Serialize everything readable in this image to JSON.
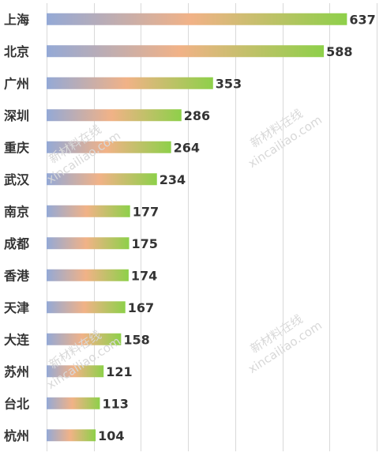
{
  "chart_data": {
    "type": "bar",
    "orientation": "horizontal",
    "categories": [
      "上海",
      "北京",
      "广州",
      "深圳",
      "重庆",
      "武汉",
      "南京",
      "成都",
      "香港",
      "天津",
      "大连",
      "苏州",
      "台北",
      "杭州"
    ],
    "values": [
      637,
      588,
      353,
      286,
      264,
      234,
      177,
      175,
      174,
      167,
      158,
      121,
      113,
      104
    ],
    "xlim": [
      0,
      700
    ],
    "grid": "vertical",
    "bar_gradient": [
      "#94a9d6",
      "#f1b287",
      "#8ed04a"
    ]
  },
  "watermarks": [
    {
      "line1": "新材料在线",
      "line2": "xincailiao.com"
    },
    {
      "line1": "新材料在线",
      "line2": "xincailiao.com"
    },
    {
      "line1": "新材料在线",
      "line2": "xincailiao.com"
    },
    {
      "line1": "新材料在线",
      "line2": "xincailiao.com"
    }
  ]
}
